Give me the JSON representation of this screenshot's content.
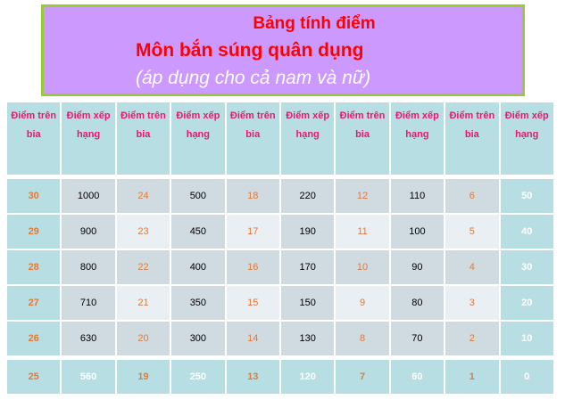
{
  "title": {
    "line1": "Bảng tính điểm",
    "line2": "Môn bắn súng quân dụng",
    "line3": "(áp dụng cho cả nam và nữ)"
  },
  "colors": {
    "title_bg": "#cc99ff",
    "title_border": "#99cc33",
    "title_text": "#ff0000",
    "header_text": "#e8186e",
    "target_score_text": "#e07a3c",
    "teal": "#b7dfe3"
  },
  "table": {
    "headers": [
      "Điểm trên bia",
      "Điểm xếp hạng",
      "Điểm trên bia",
      "Điểm xếp hạng",
      "Điểm trên bia",
      "Điểm xếp hạng",
      "Điểm trên bia",
      "Điểm xếp hạng",
      "Điểm trên bia",
      "Điểm xếp hạng"
    ],
    "rows": [
      [
        "30",
        "1000",
        "24",
        "500",
        "18",
        "220",
        "12",
        "110",
        "6",
        "50"
      ],
      [
        "29",
        "900",
        "23",
        "450",
        "17",
        "190",
        "11",
        "100",
        "5",
        "40"
      ],
      [
        "28",
        "800",
        "22",
        "400",
        "16",
        "170",
        "10",
        "90",
        "4",
        "30"
      ],
      [
        "27",
        "710",
        "21",
        "350",
        "15",
        "150",
        "9",
        "80",
        "3",
        "20"
      ],
      [
        "26",
        "630",
        "20",
        "300",
        "14",
        "130",
        "8",
        "70",
        "2",
        "10"
      ],
      [
        "25",
        "560",
        "19",
        "250",
        "13",
        "120",
        "7",
        "60",
        "1",
        "0"
      ]
    ]
  }
}
